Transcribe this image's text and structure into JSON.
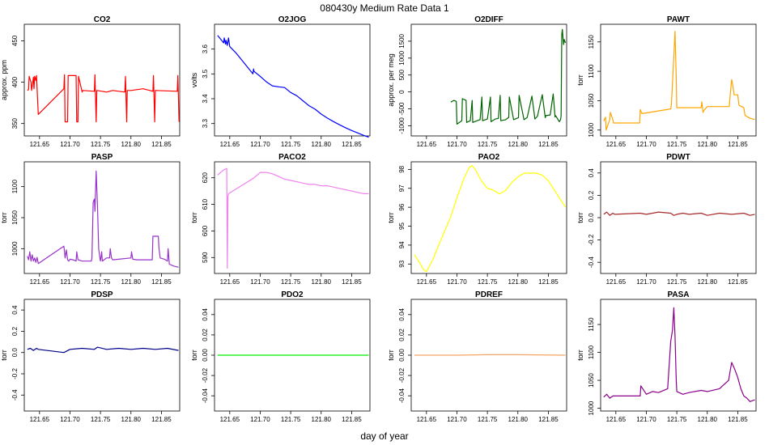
{
  "figure": {
    "title": "080430y   Medium Rate Data 1",
    "xlabel": "day of year"
  },
  "chart_data": [
    {
      "type": "line",
      "title": "CO2",
      "ylabel": "approx. ppm",
      "color": "#ff0000",
      "xlim": [
        121.625,
        121.88
      ],
      "ylim": [
        335,
        470
      ],
      "xticks": [
        121.65,
        121.7,
        121.75,
        121.8,
        121.85
      ],
      "yticks": [
        350,
        400,
        450
      ],
      "series": [
        {
          "x": [
            121.63,
            121.632,
            121.633,
            121.636,
            121.637,
            121.64,
            121.641,
            121.642,
            121.644,
            121.645,
            121.646,
            121.648,
            121.69,
            121.691,
            121.692,
            121.696,
            121.697,
            121.71,
            121.711,
            121.713,
            121.714,
            121.72,
            121.721,
            121.74,
            121.741,
            121.743,
            121.744,
            121.76,
            121.77,
            121.79,
            121.791,
            121.793,
            121.794,
            121.8,
            121.82,
            121.836,
            121.837,
            121.839,
            121.84,
            121.876,
            121.877,
            121.879
          ],
          "y": [
            390,
            391,
            407,
            400,
            390,
            406,
            392,
            407,
            402,
            408,
            393,
            361,
            392,
            409,
            352,
            352,
            408,
            408,
            352,
            352,
            407,
            388,
            390,
            389,
            409,
            352,
            390,
            388,
            390,
            388,
            407,
            352,
            390,
            390,
            392,
            389,
            408,
            352,
            390,
            389,
            408,
            352
          ]
        }
      ]
    },
    {
      "type": "line",
      "title": "O2JOG",
      "ylabel": "volts",
      "color": "#0000ff",
      "xlim": [
        121.625,
        121.88
      ],
      "ylim": [
        3.25,
        3.7
      ],
      "xticks": [
        121.65,
        121.7,
        121.75,
        121.8,
        121.85
      ],
      "yticks": [
        3.3,
        3.4,
        3.5,
        3.6
      ],
      "series": [
        {
          "x": [
            121.63,
            121.64,
            121.641,
            121.643,
            121.644,
            121.646,
            121.648,
            121.65,
            121.66,
            121.67,
            121.68,
            121.688,
            121.689,
            121.69,
            121.7,
            121.71,
            121.72,
            121.73,
            121.74,
            121.75,
            121.76,
            121.77,
            121.78,
            121.79,
            121.8,
            121.81,
            121.82,
            121.83,
            121.84,
            121.85,
            121.86,
            121.87,
            121.878
          ],
          "y": [
            3.655,
            3.625,
            3.645,
            3.62,
            3.635,
            3.615,
            3.645,
            3.61,
            3.585,
            3.555,
            3.525,
            3.5,
            3.52,
            3.51,
            3.49,
            3.468,
            3.452,
            3.448,
            3.445,
            3.425,
            3.412,
            3.392,
            3.372,
            3.358,
            3.338,
            3.322,
            3.308,
            3.295,
            3.283,
            3.272,
            3.262,
            3.252,
            3.245
          ]
        }
      ]
    },
    {
      "type": "line",
      "title": "O2DIFF",
      "ylabel": "approx. per meg",
      "color": "#006400",
      "xlim": [
        121.625,
        121.88
      ],
      "ylim": [
        -1300,
        2000
      ],
      "xticks": [
        121.65,
        121.7,
        121.75,
        121.8,
        121.85
      ],
      "yticks": [
        -1000,
        -500,
        0,
        500,
        1000,
        1500
      ],
      "series": [
        {
          "x": [
            121.69,
            121.695,
            121.699,
            121.7,
            121.708,
            121.709,
            121.715,
            121.716,
            121.722,
            121.725,
            121.726,
            121.733,
            121.738,
            121.741,
            121.742,
            121.75,
            121.755,
            121.756,
            121.763,
            121.768,
            121.771,
            121.772,
            121.78,
            121.785,
            121.786,
            121.793,
            121.798,
            121.801,
            121.802,
            121.81,
            121.815,
            121.816,
            121.823,
            121.828,
            121.831,
            121.832,
            121.84,
            121.845,
            121.846,
            121.853,
            121.858,
            121.861,
            121.862,
            121.868,
            121.87,
            121.871,
            121.872,
            121.873,
            121.875,
            121.876,
            121.878
          ],
          "y": [
            -300,
            -250,
            -280,
            -950,
            -850,
            -200,
            -250,
            -900,
            -850,
            -250,
            -900,
            -850,
            -820,
            -150,
            -850,
            -800,
            -150,
            -880,
            -800,
            -780,
            -100,
            -850,
            -820,
            -750,
            -150,
            -820,
            -780,
            -760,
            -100,
            -820,
            -760,
            -700,
            -120,
            -800,
            -740,
            -720,
            -80,
            -760,
            -700,
            -680,
            -60,
            -740,
            -700,
            -880,
            -820,
            -700,
            1700,
            1850,
            1400,
            1550,
            1450
          ]
        }
      ]
    },
    {
      "type": "line",
      "title": "PAWT",
      "ylabel": "torr",
      "color": "#ffa500",
      "xlim": [
        121.625,
        121.88
      ],
      "ylim": [
        990,
        1180
      ],
      "xticks": [
        121.65,
        121.7,
        121.75,
        121.8,
        121.85
      ],
      "yticks": [
        1000,
        1050,
        1100,
        1150
      ],
      "series": [
        {
          "x": [
            121.63,
            121.633,
            121.634,
            121.64,
            121.641,
            121.645,
            121.646,
            121.689,
            121.69,
            121.692,
            121.693,
            121.74,
            121.741,
            121.743,
            121.745,
            121.747,
            121.749,
            121.75,
            121.79,
            121.791,
            121.793,
            121.795,
            121.8,
            121.836,
            121.838,
            121.84,
            121.842,
            121.844,
            121.85,
            121.852,
            121.86,
            121.862,
            121.87,
            121.878
          ],
          "y": [
            1015,
            1022,
            1000,
            1018,
            1030,
            1018,
            1012,
            1012,
            1035,
            1030,
            1028,
            1036,
            1042,
            1080,
            1125,
            1168,
            1090,
            1038,
            1038,
            1048,
            1030,
            1034,
            1040,
            1040,
            1065,
            1086,
            1075,
            1060,
            1060,
            1042,
            1038,
            1025,
            1020,
            1018
          ]
        }
      ]
    },
    {
      "type": "line",
      "title": "PASP",
      "ylabel": "torr",
      "color": "#9932cc",
      "xlim": [
        121.625,
        121.88
      ],
      "ylim": [
        960,
        1140
      ],
      "xticks": [
        121.65,
        121.7,
        121.75,
        121.8,
        121.85
      ],
      "yticks": [
        1000,
        1050,
        1100
      ],
      "series": [
        {
          "x": [
            121.63,
            121.632,
            121.634,
            121.636,
            121.638,
            121.64,
            121.642,
            121.644,
            121.646,
            121.648,
            121.69,
            121.691,
            121.692,
            121.694,
            121.696,
            121.698,
            121.7,
            121.705,
            121.71,
            121.711,
            121.713,
            121.72,
            121.735,
            121.736,
            121.738,
            121.74,
            121.741,
            121.743,
            121.745,
            121.747,
            121.749,
            121.75,
            121.752,
            121.753,
            121.76,
            121.765,
            121.766,
            121.768,
            121.77,
            121.8,
            121.801,
            121.803,
            121.81,
            121.835,
            121.836,
            121.84,
            121.845,
            121.846,
            121.848,
            121.855,
            121.86,
            121.861,
            121.863,
            121.87,
            121.878
          ],
          "y": [
            988,
            982,
            995,
            980,
            990,
            980,
            985,
            978,
            986,
            976,
            1004,
            995,
            985,
            998,
            982,
            980,
            983,
            982,
            980,
            995,
            982,
            980,
            980,
            985,
            1075,
            1080,
            1060,
            1125,
            1070,
            1000,
            985,
            980,
            995,
            980,
            985,
            985,
            1000,
            985,
            982,
            985,
            995,
            983,
            982,
            982,
            1020,
            1020,
            1020,
            1000,
            985,
            983,
            980,
            1000,
            975,
            972,
            970
          ]
        }
      ]
    },
    {
      "type": "line",
      "title": "PACO2",
      "ylabel": "torr",
      "color": "#ee82ee",
      "xlim": [
        121.625,
        121.88
      ],
      "ylim": [
        584,
        626
      ],
      "xticks": [
        121.65,
        121.7,
        121.75,
        121.8,
        121.85
      ],
      "yticks": [
        590,
        600,
        610,
        620
      ],
      "series": [
        {
          "x": [
            121.63,
            121.64,
            121.645,
            121.646,
            121.647,
            121.648,
            121.69,
            121.7,
            121.71,
            121.72,
            121.73,
            121.74,
            121.75,
            121.76,
            121.77,
            121.78,
            121.79,
            121.8,
            121.81,
            121.82,
            121.83,
            121.84,
            121.85,
            121.86,
            121.87,
            121.878
          ],
          "y": [
            621,
            623,
            623.5,
            586,
            613,
            614,
            620,
            622,
            622,
            621.5,
            620.5,
            619.5,
            619,
            618.5,
            618,
            617.5,
            617.5,
            617,
            617,
            616.5,
            616,
            615.5,
            615,
            614.5,
            614,
            614
          ]
        }
      ]
    },
    {
      "type": "line",
      "title": "PAO2",
      "ylabel": "torr",
      "color": "#ffff00",
      "xlim": [
        121.625,
        121.88
      ],
      "ylim": [
        92.5,
        98.4
      ],
      "xticks": [
        121.65,
        121.7,
        121.75,
        121.8,
        121.85
      ],
      "yticks": [
        93,
        94,
        95,
        96,
        97,
        98
      ],
      "series": [
        {
          "x": [
            121.63,
            121.64,
            121.645,
            121.65,
            121.66,
            121.67,
            121.69,
            121.7,
            121.71,
            121.72,
            121.725,
            121.73,
            121.74,
            121.75,
            121.76,
            121.77,
            121.78,
            121.79,
            121.8,
            121.81,
            121.82,
            121.83,
            121.84,
            121.85,
            121.86,
            121.87,
            121.878
          ],
          "y": [
            93.5,
            93.0,
            92.7,
            92.6,
            93.2,
            94.0,
            95.5,
            96.5,
            97.4,
            98.1,
            98.2,
            98.0,
            97.4,
            97.0,
            96.9,
            96.7,
            96.9,
            97.3,
            97.6,
            97.8,
            97.8,
            97.8,
            97.7,
            97.4,
            96.9,
            96.4,
            96.0
          ]
        }
      ]
    },
    {
      "type": "line",
      "title": "PDWT",
      "ylabel": "torr",
      "color": "#a52a2a",
      "xlim": [
        121.625,
        121.88
      ],
      "ylim": [
        -0.5,
        0.5
      ],
      "xticks": [
        121.65,
        121.7,
        121.75,
        121.8,
        121.85
      ],
      "yticks": [
        -0.4,
        -0.2,
        0.0,
        0.2,
        0.4
      ],
      "series": [
        {
          "x": [
            121.63,
            121.635,
            121.64,
            121.645,
            121.648,
            121.69,
            121.7,
            121.72,
            121.74,
            121.745,
            121.75,
            121.76,
            121.77,
            121.79,
            121.8,
            121.82,
            121.84,
            121.86,
            121.87,
            121.878
          ],
          "y": [
            0.03,
            0.05,
            0.02,
            0.04,
            0.03,
            0.04,
            0.03,
            0.05,
            0.04,
            0.02,
            0.03,
            0.04,
            0.03,
            0.04,
            0.02,
            0.04,
            0.03,
            0.04,
            0.02,
            0.03
          ]
        }
      ]
    },
    {
      "type": "line",
      "title": "PDSP",
      "ylabel": "torr",
      "color": "#00008b",
      "xlim": [
        121.625,
        121.88
      ],
      "ylim": [
        -0.55,
        0.5
      ],
      "xticks": [
        121.65,
        121.7,
        121.75,
        121.8,
        121.85
      ],
      "yticks": [
        -0.4,
        -0.2,
        0.0,
        0.2,
        0.4
      ],
      "series": [
        {
          "x": [
            121.63,
            121.635,
            121.64,
            121.645,
            121.648,
            121.69,
            121.7,
            121.72,
            121.74,
            121.745,
            121.76,
            121.78,
            121.8,
            121.82,
            121.84,
            121.86,
            121.878
          ],
          "y": [
            0.03,
            0.04,
            0.02,
            0.04,
            0.03,
            0.0,
            0.03,
            0.04,
            0.03,
            0.05,
            0.03,
            0.04,
            0.03,
            0.04,
            0.03,
            0.04,
            0.02
          ]
        }
      ]
    },
    {
      "type": "line",
      "title": "PDO2",
      "ylabel": "torr",
      "color": "#00ee00",
      "xlim": [
        121.625,
        121.88
      ],
      "ylim": [
        -0.055,
        0.055
      ],
      "xticks": [
        121.65,
        121.7,
        121.75,
        121.8,
        121.85
      ],
      "yticks": [
        -0.04,
        -0.02,
        0.0,
        0.02,
        0.04
      ],
      "series": [
        {
          "x": [
            121.63,
            121.648,
            121.69,
            121.75,
            121.8,
            121.878
          ],
          "y": [
            0.0,
            0.0,
            0.0,
            0.0,
            0.0,
            0.0
          ]
        }
      ]
    },
    {
      "type": "line",
      "title": "PDREF",
      "ylabel": "torr",
      "color": "#f4a460",
      "xlim": [
        121.625,
        121.88
      ],
      "ylim": [
        -0.055,
        0.055
      ],
      "xticks": [
        121.65,
        121.7,
        121.75,
        121.8,
        121.85
      ],
      "yticks": [
        -0.04,
        -0.02,
        0.0,
        0.02,
        0.04
      ],
      "series": [
        {
          "x": [
            121.63,
            121.7,
            121.75,
            121.8,
            121.878
          ],
          "y": [
            0.0,
            0.0,
            0.0005,
            0.0005,
            0.0
          ]
        }
      ]
    },
    {
      "type": "line",
      "title": "PASA",
      "ylabel": "torr",
      "color": "#8b008b",
      "xlim": [
        121.625,
        121.88
      ],
      "ylim": [
        995,
        1195
      ],
      "xticks": [
        121.65,
        121.7,
        121.75,
        121.8,
        121.85
      ],
      "yticks": [
        1000,
        1050,
        1100,
        1150
      ],
      "series": [
        {
          "x": [
            121.63,
            121.635,
            121.64,
            121.645,
            121.648,
            121.69,
            121.691,
            121.7,
            121.71,
            121.72,
            121.735,
            121.74,
            121.743,
            121.745,
            121.747,
            121.749,
            121.75,
            121.76,
            121.77,
            121.79,
            121.8,
            121.82,
            121.835,
            121.838,
            121.84,
            121.845,
            121.85,
            121.855,
            121.86,
            121.865,
            121.87,
            121.878
          ],
          "y": [
            1020,
            1025,
            1018,
            1022,
            1022,
            1022,
            1040,
            1025,
            1030,
            1028,
            1035,
            1120,
            1140,
            1180,
            1130,
            1050,
            1030,
            1025,
            1028,
            1032,
            1030,
            1035,
            1050,
            1070,
            1082,
            1070,
            1055,
            1035,
            1022,
            1018,
            1012,
            1015
          ]
        }
      ]
    }
  ]
}
